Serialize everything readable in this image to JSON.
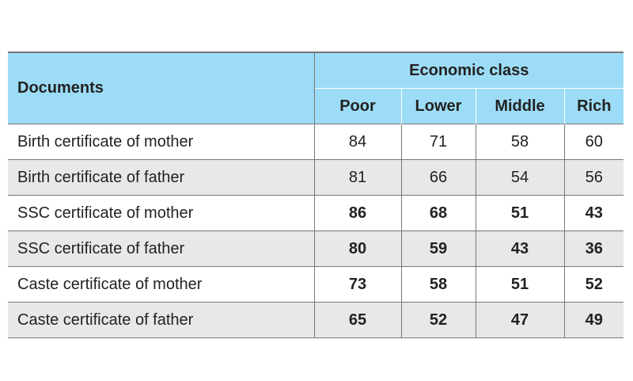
{
  "table": {
    "header": {
      "documents_label": "Documents",
      "group_label": "Economic class",
      "classes": [
        "Poor",
        "Lower",
        "Middle",
        "Rich"
      ]
    },
    "rows": [
      {
        "document": "Birth certificate of mother",
        "values": [
          "84",
          "71",
          "58",
          "60"
        ],
        "bold": false
      },
      {
        "document": "Birth certificate of father",
        "values": [
          "81",
          "66",
          "54",
          "56"
        ],
        "bold": false
      },
      {
        "document": "SSC certificate of mother",
        "values": [
          "86",
          "68",
          "51",
          "43"
        ],
        "bold": true
      },
      {
        "document": "SSC certificate of father",
        "values": [
          "80",
          "59",
          "43",
          "36"
        ],
        "bold": true
      },
      {
        "document": "Caste certificate of mother",
        "values": [
          "73",
          "58",
          "51",
          "52"
        ],
        "bold": true
      },
      {
        "document": "Caste certificate of father",
        "values": [
          "65",
          "52",
          "47",
          "49"
        ],
        "bold": true
      }
    ],
    "colors": {
      "header_bg": "#9ddcf6",
      "alt_row_bg": "#e8e8e8",
      "border": "#777777"
    }
  }
}
